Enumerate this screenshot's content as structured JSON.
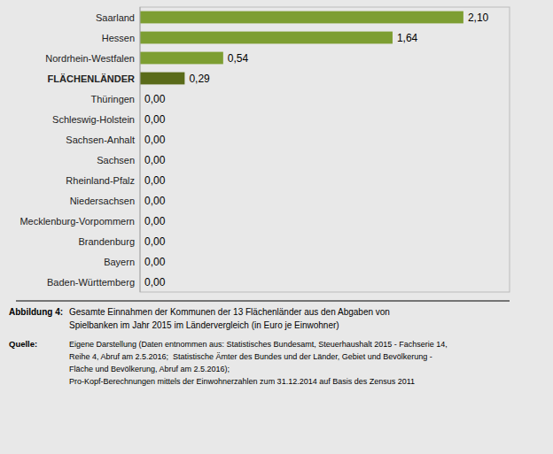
{
  "chart_data": {
    "type": "bar",
    "orientation": "horizontal",
    "categories": [
      "Saarland",
      "Hessen",
      "Nordrhein-Westfalen",
      "FLÄCHENLÄNDER",
      "Thüringen",
      "Schleswig-Holstein",
      "Sachsen-Anhalt",
      "Sachsen",
      "Rheinland-Pfalz",
      "Niedersachsen",
      "Mecklenburg-Vorpommern",
      "Brandenburg",
      "Bayern",
      "Baden-Württemberg"
    ],
    "values": [
      2.1,
      1.64,
      0.54,
      0.29,
      0.0,
      0.0,
      0.0,
      0.0,
      0.0,
      0.0,
      0.0,
      0.0,
      0.0,
      0.0
    ],
    "value_labels": [
      "2,10",
      "1,64",
      "0,54",
      "0,29",
      "0,00",
      "0,00",
      "0,00",
      "0,00",
      "0,00",
      "0,00",
      "0,00",
      "0,00",
      "0,00",
      "0,00"
    ],
    "colors": [
      "#7d9e32",
      "#7d9e32",
      "#7d9e32",
      "#5a6b1a",
      "#7d9e32",
      "#7d9e32",
      "#7d9e32",
      "#7d9e32",
      "#7d9e32",
      "#7d9e32",
      "#7d9e32",
      "#7d9e32",
      "#7d9e32",
      "#7d9e32"
    ],
    "xlim": [
      0,
      2.4
    ],
    "data_labels": true,
    "tick_labels": "y",
    "grid": false,
    "annotations": [
      "Abbildung 4:",
      "Gesamte Einnahmen der Kommunen der 13 Flächenländer aus den Abgaben von",
      "Spielbanken im Jahr 2015 im Ländervergleich (in Euro je Einwohner)",
      "Quelle:",
      "Eigene Darstellung (Daten entnommen aus: Statistisches Bundesamt, Steuerhaushalt 2015 - Fachserie 14,",
      "Reihe 4, Abruf am 2.5.2016;  Statistische Ämter des Bundes und der Länder, Gebiet und Bevölkerung -",
      "Fläche und Bevölkerung, Abruf am 2.5.2016);",
      "Pro-Kopf-Berechnungen mittels der Einwohnerzahlen zum 31.12.2014 auf Basis des Zensus 2011"
    ]
  }
}
